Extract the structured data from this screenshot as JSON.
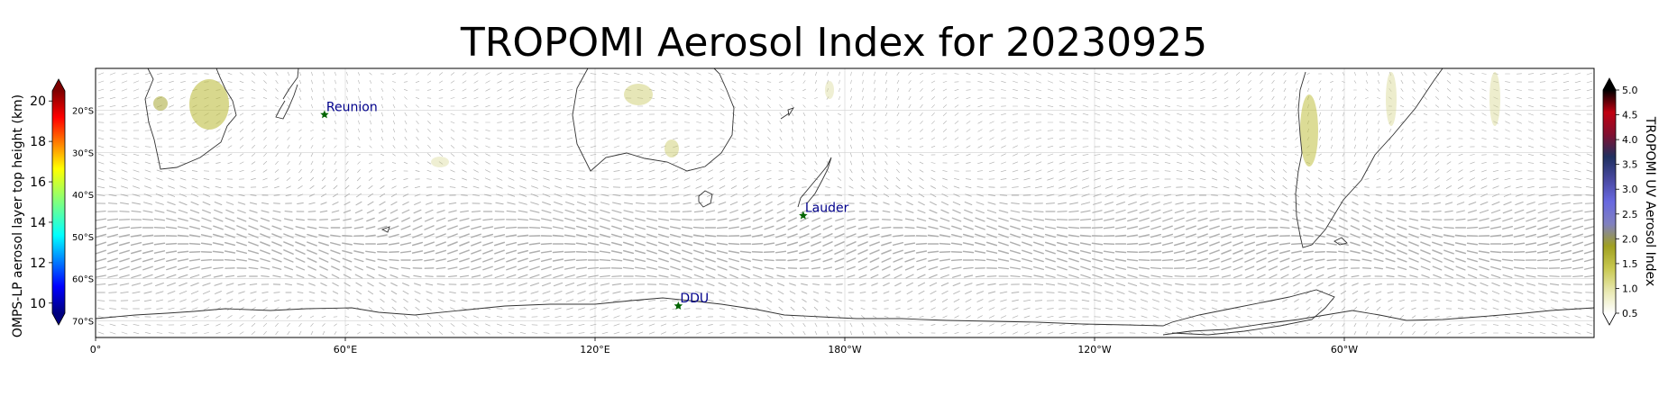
{
  "title": "TROPOMI Aerosol Index for 20230925",
  "map": {
    "lon_ticks": [
      {
        "lon": 0,
        "label": "0°"
      },
      {
        "lon": 60,
        "label": "60°E"
      },
      {
        "lon": 120,
        "label": "120°E"
      },
      {
        "lon": 180,
        "label": "180°W"
      },
      {
        "lon": 240,
        "label": "120°W"
      },
      {
        "lon": 300,
        "label": "60°W"
      }
    ],
    "lat_labels": [
      {
        "lat": -20,
        "label": "20°S"
      },
      {
        "lat": -30,
        "label": "30°S"
      },
      {
        "lat": -40,
        "label": "40°S"
      },
      {
        "lat": -50,
        "label": "50°S"
      },
      {
        "lat": -60,
        "label": "60°S"
      },
      {
        "lat": -70,
        "label": "70°S"
      }
    ],
    "lon_range": [
      0,
      360
    ],
    "lat_range": [
      -74,
      -10
    ],
    "stations": [
      {
        "name": "Reunion",
        "lon": 55,
        "lat": -21
      },
      {
        "name": "Lauder",
        "lon": 170,
        "lat": -45
      },
      {
        "name": "DDU",
        "lon": 140,
        "lat": -66.5
      }
    ],
    "station_marker_color": "#006400",
    "station_label_color": "#00008b",
    "wind_vector_color": "#b0b0b0",
    "coastline_color": "#333333"
  },
  "left_colorbar": {
    "label": "OMPS-LP aerosol layer top height (km)",
    "ticks": [
      {
        "v": 10,
        "label": "10"
      },
      {
        "v": 12,
        "label": "12"
      },
      {
        "v": 14,
        "label": "14"
      },
      {
        "v": 16,
        "label": "16"
      },
      {
        "v": 18,
        "label": "18"
      },
      {
        "v": 20,
        "label": "20"
      }
    ],
    "range": [
      9.5,
      20.5
    ],
    "colormap": "jet"
  },
  "right_colorbar": {
    "label": "TROPOMI UV Aerosol Index",
    "ticks": [
      {
        "v": 0.5,
        "label": "0.5"
      },
      {
        "v": 1.0,
        "label": "1.0"
      },
      {
        "v": 1.5,
        "label": "1.5"
      },
      {
        "v": 2.0,
        "label": "2.0"
      },
      {
        "v": 2.5,
        "label": "2.5"
      },
      {
        "v": 3.0,
        "label": "3.0"
      },
      {
        "v": 3.5,
        "label": "3.5"
      },
      {
        "v": 4.0,
        "label": "4.0"
      },
      {
        "v": 4.5,
        "label": "4.5"
      },
      {
        "v": 5.0,
        "label": "5.0"
      }
    ],
    "range": [
      0.5,
      5.0
    ],
    "colormap": [
      "#ffffff",
      "#e8e8b0",
      "#c8c850",
      "#a0a020",
      "#8080c0",
      "#6868e0",
      "#4848a0",
      "#203060",
      "#801030",
      "#c00010",
      "#000000"
    ]
  }
}
